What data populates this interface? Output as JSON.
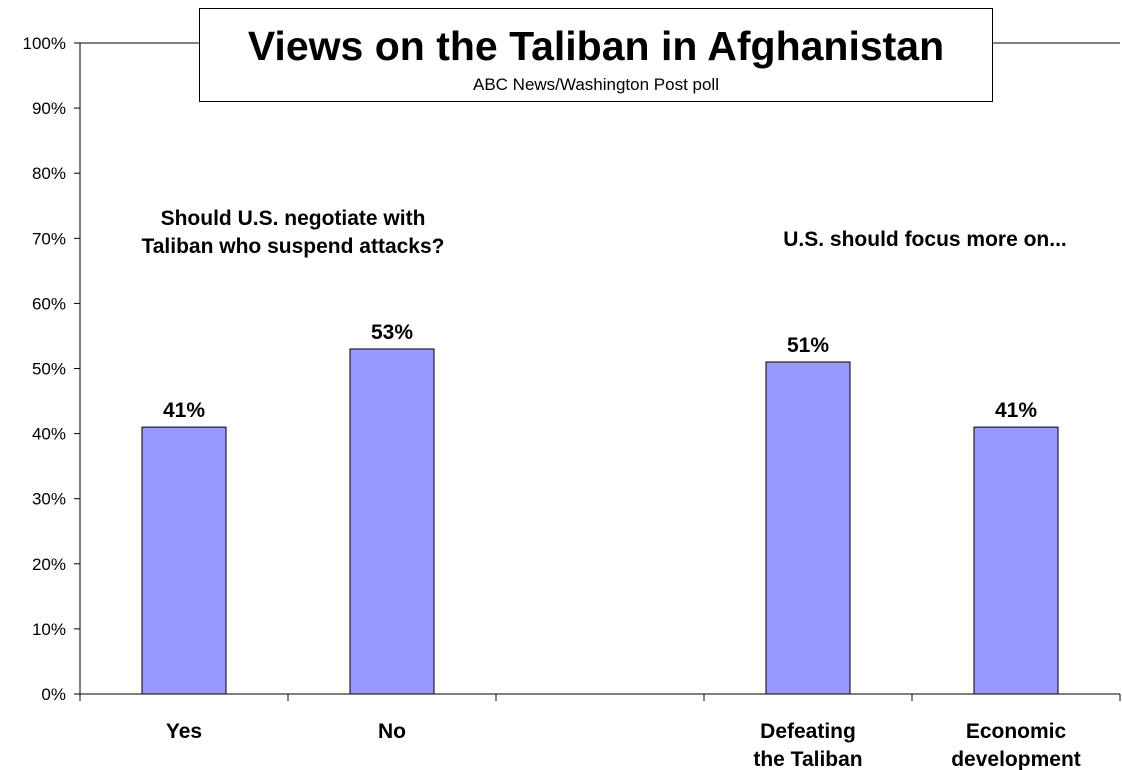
{
  "chart_data": {
    "type": "bar",
    "title": "Views on the Taliban in Afghanistan",
    "subtitle": "ABC News/Washington Post poll",
    "categories": [
      "Yes",
      "No",
      "",
      "Defeating the Taliban",
      "Economic development"
    ],
    "category_lines": [
      [
        "Yes"
      ],
      [
        "No"
      ],
      [],
      [
        "Defeating",
        "the Taliban"
      ],
      [
        "Economic",
        "development"
      ]
    ],
    "values": [
      41,
      53,
      null,
      51,
      41
    ],
    "data_labels": [
      "41%",
      "53%",
      "",
      "51%",
      "41%"
    ],
    "ylim": [
      0,
      100
    ],
    "yticks": [
      "0%",
      "10%",
      "20%",
      "30%",
      "40%",
      "50%",
      "60%",
      "70%",
      "80%",
      "90%",
      "100%"
    ],
    "grid": false,
    "legend": "none",
    "bar_color": "#9999ff",
    "bar_edge_color": "#000000",
    "annotations": [
      {
        "lines": [
          "Should U.S. negotiate with",
          "Taliban who suspend attacks?"
        ]
      },
      {
        "lines": [
          "U.S. should focus more on..."
        ]
      }
    ]
  }
}
